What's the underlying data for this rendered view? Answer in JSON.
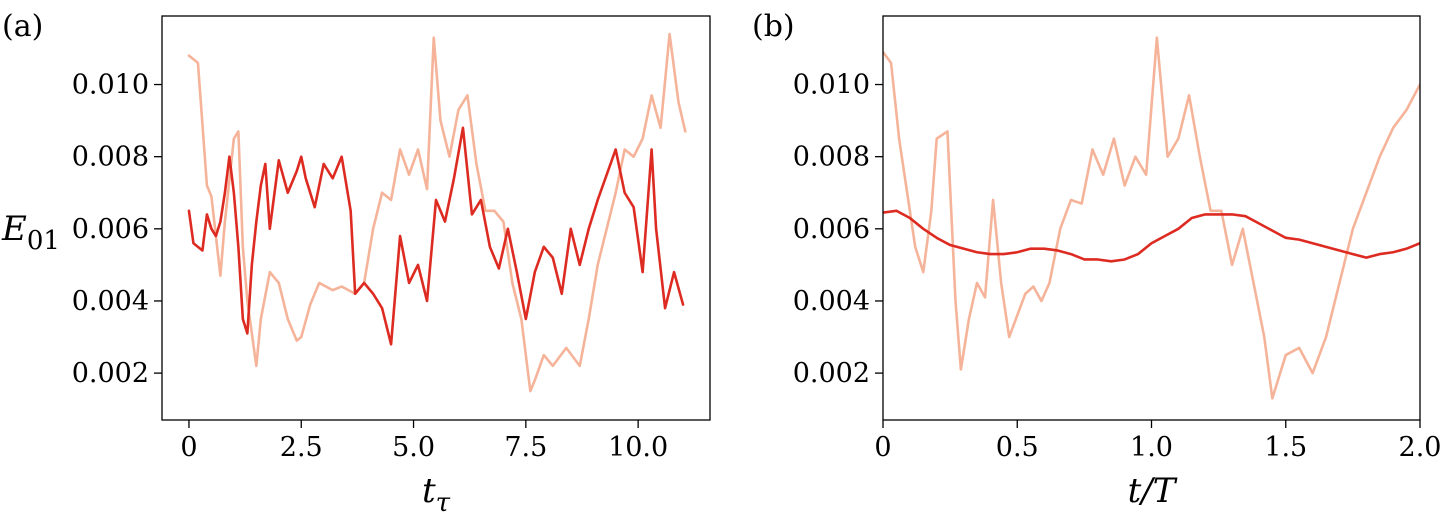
{
  "chart_data": [
    {
      "type": "line",
      "panel_label": "(a)",
      "xlabel": "t",
      "xlabel_sub": "τ",
      "ylabel": "E",
      "ylabel_sub": "01",
      "xlim": [
        -0.6,
        11.6
      ],
      "ylim": [
        0.0007,
        0.0119
      ],
      "xticks": [
        0,
        2.5,
        5.0,
        7.5,
        10.0
      ],
      "xtick_labels": [
        "0",
        "2.5",
        "5.0",
        "7.5",
        "10.0"
      ],
      "yticks": [
        0.002,
        0.004,
        0.006,
        0.008,
        0.01
      ],
      "ytick_labels": [
        "0.002",
        "0.004",
        "0.006",
        "0.008",
        "0.010"
      ],
      "series": [
        {
          "color": "#f5b49a",
          "x": [
            0,
            0.2,
            0.4,
            0.5,
            0.6,
            0.7,
            0.8,
            1.0,
            1.1,
            1.2,
            1.3,
            1.5,
            1.6,
            1.8,
            2.0,
            2.2,
            2.4,
            2.5,
            2.7,
            2.9,
            3.2,
            3.4,
            3.7,
            3.9,
            4.1,
            4.3,
            4.5,
            4.7,
            4.9,
            5.1,
            5.3,
            5.45,
            5.6,
            5.8,
            6.0,
            6.2,
            6.4,
            6.6,
            6.8,
            7.0,
            7.2,
            7.4,
            7.6,
            7.7,
            7.9,
            8.1,
            8.4,
            8.7,
            8.9,
            9.1,
            9.3,
            9.5,
            9.7,
            9.9,
            10.1,
            10.3,
            10.5,
            10.7,
            10.9,
            11.05
          ],
          "y": [
            0.0108,
            0.0106,
            0.0072,
            0.0069,
            0.0058,
            0.0047,
            0.0062,
            0.0085,
            0.0087,
            0.0055,
            0.004,
            0.0022,
            0.0035,
            0.0048,
            0.0045,
            0.0035,
            0.0029,
            0.003,
            0.0039,
            0.0045,
            0.0043,
            0.0044,
            0.0042,
            0.0045,
            0.006,
            0.007,
            0.0068,
            0.0082,
            0.0075,
            0.0082,
            0.0071,
            0.0113,
            0.009,
            0.008,
            0.0093,
            0.0097,
            0.0078,
            0.0065,
            0.0065,
            0.0062,
            0.0045,
            0.0035,
            0.0015,
            0.0018,
            0.0025,
            0.0022,
            0.0027,
            0.0022,
            0.0035,
            0.005,
            0.006,
            0.007,
            0.0082,
            0.008,
            0.0085,
            0.0097,
            0.0088,
            0.0114,
            0.0095,
            0.0087
          ]
        },
        {
          "color": "#dd2b22",
          "x": [
            0,
            0.1,
            0.3,
            0.4,
            0.5,
            0.6,
            0.7,
            0.8,
            0.9,
            1.0,
            1.1,
            1.2,
            1.3,
            1.4,
            1.5,
            1.6,
            1.7,
            1.8,
            2.0,
            2.2,
            2.4,
            2.5,
            2.6,
            2.8,
            3.0,
            3.2,
            3.4,
            3.6,
            3.7,
            3.9,
            4.1,
            4.3,
            4.5,
            4.7,
            4.9,
            5.1,
            5.3,
            5.5,
            5.7,
            5.9,
            6.1,
            6.3,
            6.5,
            6.7,
            6.9,
            7.1,
            7.3,
            7.5,
            7.7,
            7.9,
            8.1,
            8.3,
            8.5,
            8.7,
            8.9,
            9.1,
            9.3,
            9.5,
            9.7,
            9.9,
            10.1,
            10.3,
            10.4,
            10.6,
            10.8,
            11.0
          ],
          "y": [
            0.0065,
            0.0056,
            0.0054,
            0.0064,
            0.006,
            0.0058,
            0.0062,
            0.007,
            0.008,
            0.007,
            0.0055,
            0.0035,
            0.0031,
            0.005,
            0.0062,
            0.0072,
            0.0078,
            0.006,
            0.0079,
            0.007,
            0.0076,
            0.008,
            0.0074,
            0.0066,
            0.0078,
            0.0074,
            0.008,
            0.0065,
            0.0042,
            0.0045,
            0.0042,
            0.0038,
            0.0028,
            0.0058,
            0.0045,
            0.005,
            0.004,
            0.0068,
            0.0062,
            0.0074,
            0.0088,
            0.0064,
            0.0068,
            0.0055,
            0.0049,
            0.006,
            0.0048,
            0.0035,
            0.0048,
            0.0055,
            0.0052,
            0.0042,
            0.006,
            0.005,
            0.006,
            0.0068,
            0.0075,
            0.0082,
            0.007,
            0.0066,
            0.0048,
            0.0082,
            0.006,
            0.0038,
            0.0048,
            0.0039
          ]
        }
      ]
    },
    {
      "type": "line",
      "panel_label": "(b)",
      "xlabel": "t/T",
      "xlim": [
        0,
        2.0
      ],
      "ylim": [
        0.0007,
        0.0119
      ],
      "xticks": [
        0,
        0.5,
        1.0,
        1.5,
        2.0
      ],
      "xtick_labels": [
        "0",
        "0.5",
        "1.0",
        "1.5",
        "2.0"
      ],
      "yticks": [
        0.002,
        0.004,
        0.006,
        0.008,
        0.01
      ],
      "ytick_labels": [
        "0.002",
        "0.004",
        "0.006",
        "0.008",
        "0.010"
      ],
      "series": [
        {
          "color": "#f5b49a",
          "x": [
            0,
            0.03,
            0.06,
            0.09,
            0.12,
            0.15,
            0.18,
            0.2,
            0.24,
            0.27,
            0.29,
            0.32,
            0.35,
            0.38,
            0.41,
            0.44,
            0.47,
            0.5,
            0.53,
            0.56,
            0.59,
            0.62,
            0.66,
            0.7,
            0.74,
            0.78,
            0.82,
            0.86,
            0.9,
            0.94,
            0.98,
            1.02,
            1.06,
            1.1,
            1.14,
            1.18,
            1.22,
            1.26,
            1.3,
            1.34,
            1.38,
            1.42,
            1.45,
            1.5,
            1.55,
            1.6,
            1.65,
            1.7,
            1.75,
            1.8,
            1.85,
            1.9,
            1.95,
            2.0
          ],
          "y": [
            0.0109,
            0.0106,
            0.0085,
            0.007,
            0.0055,
            0.0048,
            0.0065,
            0.0085,
            0.0087,
            0.004,
            0.0021,
            0.0035,
            0.0045,
            0.0041,
            0.0068,
            0.0045,
            0.003,
            0.0036,
            0.0042,
            0.0044,
            0.004,
            0.0045,
            0.006,
            0.0068,
            0.0067,
            0.0082,
            0.0075,
            0.0085,
            0.0072,
            0.008,
            0.0075,
            0.0113,
            0.008,
            0.0085,
            0.0097,
            0.008,
            0.0065,
            0.0065,
            0.005,
            0.006,
            0.0045,
            0.003,
            0.0013,
            0.0025,
            0.0027,
            0.002,
            0.003,
            0.0045,
            0.006,
            0.007,
            0.008,
            0.0088,
            0.0093,
            0.01
          ]
        },
        {
          "color": "#dd2b22",
          "x": [
            0,
            0.05,
            0.1,
            0.15,
            0.2,
            0.25,
            0.3,
            0.35,
            0.4,
            0.45,
            0.5,
            0.55,
            0.6,
            0.65,
            0.7,
            0.75,
            0.8,
            0.85,
            0.9,
            0.95,
            1.0,
            1.05,
            1.1,
            1.15,
            1.2,
            1.25,
            1.3,
            1.35,
            1.4,
            1.45,
            1.5,
            1.55,
            1.6,
            1.65,
            1.7,
            1.75,
            1.8,
            1.85,
            1.9,
            1.95,
            2.0
          ],
          "y": [
            0.00645,
            0.0065,
            0.0063,
            0.006,
            0.00575,
            0.00555,
            0.00545,
            0.00535,
            0.0053,
            0.0053,
            0.00535,
            0.00545,
            0.00545,
            0.0054,
            0.0053,
            0.00515,
            0.00515,
            0.0051,
            0.00515,
            0.0053,
            0.0056,
            0.0058,
            0.006,
            0.0063,
            0.0064,
            0.0064,
            0.0064,
            0.00635,
            0.00615,
            0.00595,
            0.00575,
            0.0057,
            0.0056,
            0.0055,
            0.0054,
            0.0053,
            0.0052,
            0.0053,
            0.00535,
            0.00545,
            0.0056
          ]
        }
      ]
    }
  ]
}
